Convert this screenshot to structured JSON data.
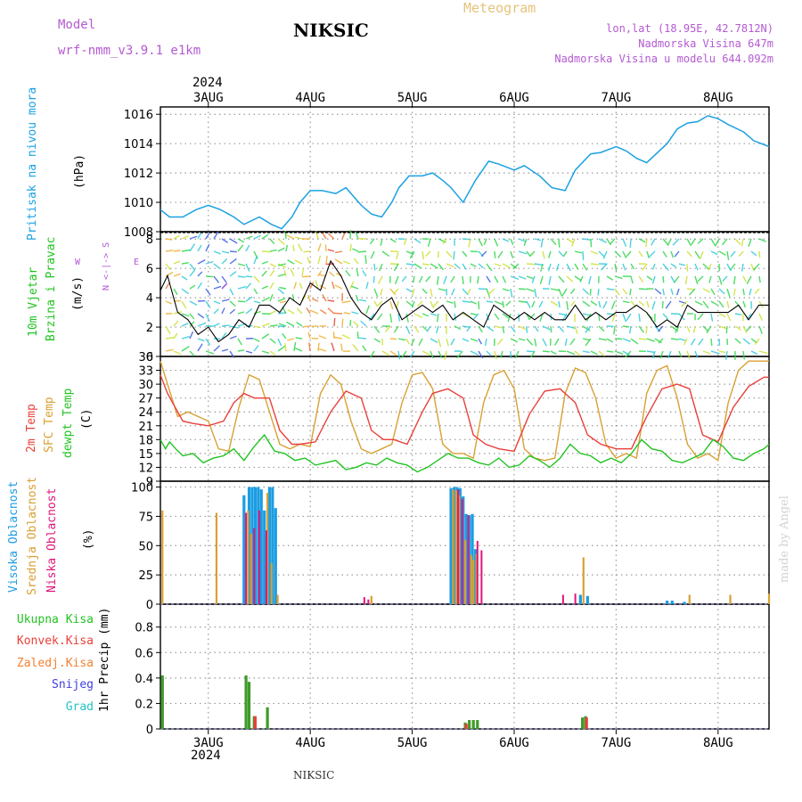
{
  "header": {
    "model_label": "Model",
    "model_name": "wrf-nmm_v3.9.1 e1km",
    "station": "NIKSIC",
    "meteogram": "Meteogram",
    "lonlat": "lon,lat (18.95E, 42.7812N)",
    "altitude": "Nadmorska Visina 647m",
    "model_altitude": "Nadmorska Visina u modelu 644.092m",
    "year": "2024"
  },
  "footer": {
    "station": "NIKSIC",
    "year": "2024",
    "credit": "made by Angel"
  },
  "colors": {
    "pressure": "#1ba1e2",
    "temp2m": "#e8403a",
    "sfc": "#d9a033",
    "dewpt": "#22c322",
    "high_cloud": "#1b9de2",
    "mid_cloud": "#d9a033",
    "low_cloud": "#e0157a",
    "total_precip": "#3f9a2a",
    "conv_precip": "#e8403a",
    "frozen": "#f08030",
    "snow": "#4040e0",
    "graupel": "#22c3c3",
    "purple_text": "#b45ad2",
    "grid": "#9a9a9a"
  },
  "panels": {
    "pressure": {
      "ylabel": "Pritisak na nivou mora",
      "unit": "(hPa)"
    },
    "wind": {
      "ylabel1": "10m Vjetar",
      "ylabel2": "Brzina i Pravac",
      "unit": "(m/s)",
      "compass_ns": "N <-|-> S",
      "compass_w": "W",
      "compass_e": "E"
    },
    "temp": {
      "ylabel1": "2m Temp",
      "ylabel2": "SFC Temp",
      "ylabel3": "dewpt Temp",
      "unit": "(C)"
    },
    "cloud": {
      "ylabel1": "Visoka Oblacnost",
      "ylabel2": "Srednja Oblacnost",
      "ylabel3": "Niska Oblacnost",
      "unit": "(%)"
    },
    "precip": {
      "legend": [
        "Ukupna Kisa",
        "Konvek.Kisa",
        "Zaledj.Kisa",
        "Snijeg",
        "Grad"
      ],
      "unit": "1hr Precip (mm)"
    }
  },
  "chart_data": [
    {
      "type": "line",
      "title": "Pritisak na nivou mora",
      "ylabel": "(hPa)",
      "categories": [
        "3AUG",
        "4AUG",
        "5AUG",
        "6AUG",
        "7AUG",
        "8AUG"
      ],
      "xlim": [
        -0.47,
        5.5
      ],
      "ylim": [
        1008,
        1016.5
      ],
      "yticks": [
        1008,
        1010,
        1012,
        1014,
        1016
      ],
      "series": [
        {
          "name": "pressure",
          "x": [
            -0.47,
            -0.38,
            -0.25,
            -0.12,
            0,
            0.12,
            0.25,
            0.35,
            0.5,
            0.62,
            0.72,
            0.82,
            0.9,
            1.0,
            1.12,
            1.25,
            1.35,
            1.5,
            1.6,
            1.7,
            1.8,
            1.87,
            1.97,
            2.1,
            2.2,
            2.3,
            2.38,
            2.5,
            2.62,
            2.75,
            2.85,
            3.0,
            3.1,
            3.25,
            3.37,
            3.5,
            3.6,
            3.75,
            3.85,
            4.0,
            4.1,
            4.2,
            4.3,
            4.5,
            4.6,
            4.7,
            4.8,
            4.9,
            5.0,
            5.1,
            5.25,
            5.35,
            5.5
          ],
          "y": [
            1009.5,
            1009.0,
            1009.0,
            1009.5,
            1009.8,
            1009.5,
            1009.0,
            1008.5,
            1009.0,
            1008.5,
            1008.2,
            1009.0,
            1010.0,
            1010.8,
            1010.8,
            1010.6,
            1011.0,
            1009.8,
            1009.2,
            1009.0,
            1010.0,
            1011.0,
            1011.8,
            1011.8,
            1012.0,
            1011.5,
            1011.0,
            1010.0,
            1011.5,
            1012.8,
            1012.6,
            1012.2,
            1012.5,
            1011.8,
            1011.0,
            1010.8,
            1012.2,
            1013.3,
            1013.4,
            1013.8,
            1013.5,
            1013.0,
            1012.7,
            1014.0,
            1015.0,
            1015.4,
            1015.5,
            1015.9,
            1015.7,
            1015.3,
            1014.8,
            1014.2,
            1013.8
          ]
        }
      ]
    },
    {
      "type": "line",
      "title": "10m Vjetar",
      "ylabel": "(m/s)",
      "categories": [
        "3AUG",
        "4AUG",
        "5AUG",
        "6AUG",
        "7AUG",
        "8AUG"
      ],
      "xlim": [
        -0.47,
        5.5
      ],
      "ylim": [
        0,
        8.5
      ],
      "yticks": [
        0,
        2,
        4,
        6,
        8
      ],
      "series": [
        {
          "name": "speed",
          "x": [
            -0.47,
            -0.4,
            -0.3,
            -0.2,
            -0.1,
            0,
            0.1,
            0.2,
            0.3,
            0.4,
            0.5,
            0.6,
            0.7,
            0.8,
            0.9,
            1.0,
            1.1,
            1.2,
            1.3,
            1.4,
            1.5,
            1.6,
            1.7,
            1.8,
            1.9,
            2.0,
            2.1,
            2.2,
            2.3,
            2.4,
            2.5,
            2.6,
            2.7,
            2.8,
            2.9,
            3.0,
            3.1,
            3.2,
            3.3,
            3.4,
            3.5,
            3.6,
            3.7,
            3.8,
            3.9,
            4.0,
            4.1,
            4.2,
            4.3,
            4.4,
            4.5,
            4.6,
            4.7,
            4.8,
            4.9,
            5.0,
            5.1,
            5.2,
            5.3,
            5.4,
            5.5
          ],
          "y": [
            4.5,
            5.5,
            3.0,
            2.5,
            1.5,
            2.0,
            1.0,
            1.5,
            2.5,
            2.0,
            3.5,
            3.5,
            3.0,
            4.0,
            3.5,
            5.0,
            4.5,
            6.5,
            5.5,
            4.0,
            3.0,
            2.5,
            3.5,
            4.0,
            2.5,
            3.0,
            3.5,
            3.0,
            3.5,
            2.5,
            3.0,
            2.5,
            2.0,
            3.5,
            3.0,
            2.5,
            3.0,
            2.5,
            3.0,
            2.5,
            2.5,
            3.5,
            2.5,
            3.0,
            2.5,
            3.0,
            3.0,
            3.5,
            3.0,
            2.0,
            2.5,
            2.0,
            3.5,
            3.0,
            3.0,
            3.0,
            3.0,
            3.5,
            2.5,
            3.5,
            3.5
          ]
        }
      ]
    },
    {
      "type": "line",
      "title": "2m Temp / SFC Temp / dewpt Temp",
      "ylabel": "(C)",
      "categories": [
        "3AUG",
        "4AUG",
        "5AUG",
        "6AUG",
        "7AUG",
        "8AUG"
      ],
      "xlim": [
        -0.47,
        5.5
      ],
      "ylim": [
        9,
        36
      ],
      "yticks": [
        9,
        12,
        15,
        18,
        21,
        24,
        27,
        30,
        33,
        36
      ],
      "series": [
        {
          "name": "2m Temp",
          "x": [
            -0.47,
            -0.4,
            -0.35,
            -0.25,
            -0.15,
            0,
            0.15,
            0.25,
            0.35,
            0.45,
            0.6,
            0.7,
            0.82,
            0.9,
            1.05,
            1.2,
            1.35,
            1.5,
            1.6,
            1.72,
            1.82,
            1.95,
            2.1,
            2.2,
            2.35,
            2.5,
            2.6,
            2.72,
            2.85,
            3.0,
            3.15,
            3.3,
            3.45,
            3.6,
            3.72,
            3.85,
            4.0,
            4.15,
            4.3,
            4.45,
            4.6,
            4.72,
            4.85,
            5.0,
            5.15,
            5.3,
            5.45,
            5.5
          ],
          "y": [
            32,
            28,
            26,
            22,
            21.5,
            21,
            22,
            26,
            28,
            27,
            27,
            20,
            17,
            17,
            17.5,
            24,
            28.5,
            27,
            20,
            18,
            18,
            17,
            24,
            28,
            29,
            27,
            19,
            17,
            16,
            15.5,
            23.5,
            28.5,
            29,
            26,
            19,
            17,
            16,
            16,
            23,
            29,
            30,
            29,
            19,
            17.5,
            25,
            29.5,
            31.5,
            31.5
          ]
        },
        {
          "name": "SFC Temp",
          "x": [
            -0.47,
            -0.4,
            -0.3,
            -0.2,
            -0.1,
            0,
            0.1,
            0.2,
            0.3,
            0.4,
            0.5,
            0.6,
            0.7,
            0.8,
            0.9,
            1.0,
            1.1,
            1.2,
            1.3,
            1.4,
            1.5,
            1.6,
            1.7,
            1.8,
            1.9,
            2.0,
            2.1,
            2.2,
            2.3,
            2.4,
            2.5,
            2.6,
            2.7,
            2.8,
            2.9,
            3.0,
            3.1,
            3.2,
            3.3,
            3.4,
            3.5,
            3.6,
            3.7,
            3.8,
            3.9,
            4.0,
            4.1,
            4.2,
            4.3,
            4.4,
            4.5,
            4.6,
            4.7,
            4.8,
            4.9,
            5.0,
            5.1,
            5.2,
            5.3,
            5.4,
            5.5
          ],
          "y": [
            35,
            30,
            23,
            24,
            23,
            22,
            16,
            15.5,
            25,
            32,
            31,
            24,
            17,
            16,
            17,
            16.5,
            28,
            32,
            30,
            22,
            16,
            15,
            16,
            17,
            26,
            32,
            32.5,
            29,
            17,
            15,
            15,
            14,
            26,
            32,
            33,
            29,
            16,
            14,
            13.5,
            14,
            28,
            33.5,
            32.5,
            27,
            17,
            14,
            15,
            14,
            28,
            33,
            34,
            27,
            17,
            14,
            15,
            13.5,
            26,
            33,
            35,
            35,
            35
          ]
        },
        {
          "name": "dewpt Temp",
          "x": [
            -0.47,
            -0.42,
            -0.38,
            -0.32,
            -0.25,
            -0.15,
            -0.05,
            0.05,
            0.15,
            0.25,
            0.35,
            0.45,
            0.55,
            0.65,
            0.75,
            0.85,
            0.95,
            1.05,
            1.15,
            1.25,
            1.35,
            1.45,
            1.55,
            1.65,
            1.75,
            1.85,
            1.95,
            2.05,
            2.15,
            2.25,
            2.35,
            2.45,
            2.55,
            2.65,
            2.75,
            2.85,
            2.95,
            3.05,
            3.15,
            3.25,
            3.35,
            3.45,
            3.55,
            3.65,
            3.75,
            3.85,
            3.95,
            4.05,
            4.15,
            4.25,
            4.35,
            4.45,
            4.55,
            4.65,
            4.75,
            4.85,
            4.95,
            5.05,
            5.15,
            5.25,
            5.35,
            5.45,
            5.5
          ],
          "y": [
            18,
            16,
            17.5,
            16,
            14.5,
            15,
            13,
            14,
            14.5,
            16,
            13.5,
            16.5,
            19,
            15.5,
            15,
            13.5,
            14,
            12.5,
            13,
            13.5,
            11.5,
            12,
            13,
            12.5,
            14,
            13,
            12.5,
            11,
            12,
            13.5,
            15,
            14,
            14,
            13,
            12.5,
            14,
            12,
            12.5,
            14.5,
            13.5,
            12,
            14,
            17,
            15,
            14.5,
            13,
            14,
            13,
            15,
            18,
            16,
            15.5,
            13.5,
            13,
            14,
            15,
            18,
            16.5,
            14,
            13.5,
            15,
            16,
            17
          ]
        }
      ]
    },
    {
      "type": "bar",
      "title": "Oblacnost",
      "ylabel": "(%)",
      "categories": [
        "3AUG",
        "4AUG",
        "5AUG",
        "6AUG",
        "7AUG",
        "8AUG"
      ],
      "xlim": [
        -0.47,
        5.5
      ],
      "ylim": [
        0,
        105
      ],
      "yticks": [
        0,
        25,
        50,
        75,
        100
      ],
      "series": [
        {
          "name": "Visoka Oblacnost",
          "x": [
            0.35,
            0.4,
            0.43,
            0.46,
            0.49,
            0.52,
            0.55,
            0.6,
            0.63,
            0.66,
            2.38,
            2.41,
            2.44,
            2.47,
            2.5,
            2.53,
            2.56,
            2.59,
            2.62,
            3.65,
            3.72,
            4.5,
            4.55,
            4.67
          ],
          "y": [
            93,
            100,
            100,
            100,
            100,
            98,
            80,
            100,
            100,
            82,
            99,
            100,
            100,
            99,
            92,
            77,
            76,
            77,
            47,
            8,
            7,
            3,
            3,
            2
          ]
        },
        {
          "name": "Srednja Oblacnost",
          "x": [
            -0.45,
            0.08,
            0.39,
            0.42,
            0.58,
            0.62,
            0.68,
            1.6,
            2.4,
            2.43,
            2.46,
            2.52,
            2.58,
            2.6,
            2.63,
            3.68,
            4.72,
            5.12,
            5.5
          ],
          "y": [
            80,
            78,
            80,
            60,
            95,
            35,
            8,
            7,
            98,
            97,
            93,
            55,
            42,
            38,
            43,
            40,
            8,
            8,
            9
          ]
        },
        {
          "name": "Niska Oblacnost",
          "x": [
            0.37,
            0.45,
            0.5,
            0.57,
            1.53,
            1.57,
            2.45,
            2.49,
            2.55,
            2.64,
            2.68,
            3.48,
            3.6
          ],
          "y": [
            78,
            65,
            80,
            63,
            6,
            4,
            98,
            90,
            76,
            54,
            46,
            8,
            9
          ]
        }
      ]
    },
    {
      "type": "bar",
      "title": "1hr Precip",
      "ylabel": "1hr Precip (mm)",
      "categories": [
        "3AUG",
        "4AUG",
        "5AUG",
        "6AUG",
        "7AUG",
        "8AUG"
      ],
      "xlim": [
        -0.47,
        5.5
      ],
      "ylim": [
        0,
        0.98
      ],
      "yticks": [
        0,
        0.2,
        0.4,
        0.6,
        0.8
      ],
      "series": [
        {
          "name": "Ukupna Kisa",
          "x": [
            -0.45,
            0.37,
            0.4,
            0.45,
            0.58,
            2.52,
            2.56,
            2.6,
            2.64,
            3.67,
            3.7
          ],
          "y": [
            0.42,
            0.42,
            0.37,
            0.1,
            0.17,
            0.05,
            0.07,
            0.07,
            0.07,
            0.09,
            0.1
          ]
        },
        {
          "name": "Konvek.Kisa",
          "x": [
            0.46,
            2.53,
            3.71
          ],
          "y": [
            0.1,
            0.04,
            0.09
          ]
        }
      ]
    }
  ]
}
